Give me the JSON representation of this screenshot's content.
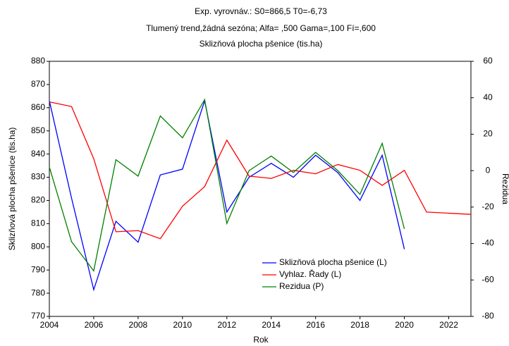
{
  "chart_data": {
    "type": "line",
    "title": "Exp. vyrovnáv.: S0=866,5 T0=-6,73",
    "subtitle": "Tlumený trend,žádná sezóna; Alfa= ,500 Gama=,100 Fí=,600",
    "subtitle2": "Sklizňová plocha pšenice (tis.ha)",
    "xlabel": "Rok",
    "ylabel": "Sklizňová plocha pšenice (tis.ha)",
    "y2label": "Rezidua",
    "x": [
      2004,
      2005,
      2006,
      2007,
      2008,
      2009,
      2010,
      2011,
      2012,
      2013,
      2014,
      2015,
      2016,
      2017,
      2018,
      2019,
      2020,
      2021,
      2022,
      2023
    ],
    "xlim": [
      2004,
      2023
    ],
    "xticks": [
      2004,
      2006,
      2008,
      2010,
      2012,
      2014,
      2016,
      2018,
      2020,
      2022
    ],
    "ylim": [
      770,
      880
    ],
    "yticks": [
      770,
      780,
      790,
      800,
      810,
      820,
      830,
      840,
      850,
      860,
      870,
      880
    ],
    "y2lim": [
      -80,
      60
    ],
    "y2ticks": [
      -80,
      -60,
      -40,
      -20,
      0,
      20,
      40,
      60
    ],
    "grid": false,
    "legend": "lower right",
    "series": [
      {
        "name": "Sklizňová plocha pšenice (L)",
        "color": "#0000ff",
        "values": [
          863,
          821,
          781.5,
          811,
          802,
          831,
          833.5,
          863,
          815,
          830,
          836,
          830,
          839.5,
          832,
          820,
          839.5,
          799,
          null,
          null,
          null
        ]
      },
      {
        "name": "Vyhlaz. Řady (L)",
        "color": "#ff0000",
        "values": [
          862.5,
          860.5,
          838,
          806.5,
          807,
          803.5,
          817.5,
          826,
          846,
          830.5,
          829.5,
          833,
          831.5,
          835.5,
          833,
          826.5,
          833,
          815,
          814.5,
          814
        ]
      },
      {
        "name": "Rezidua (P)",
        "color": "#008000",
        "axis": "y2",
        "values": [
          2,
          -39,
          -55,
          6,
          -3,
          30,
          18,
          39,
          -29,
          0,
          8,
          -1,
          10,
          0,
          -13,
          15,
          -32,
          null,
          null,
          null
        ]
      }
    ]
  }
}
